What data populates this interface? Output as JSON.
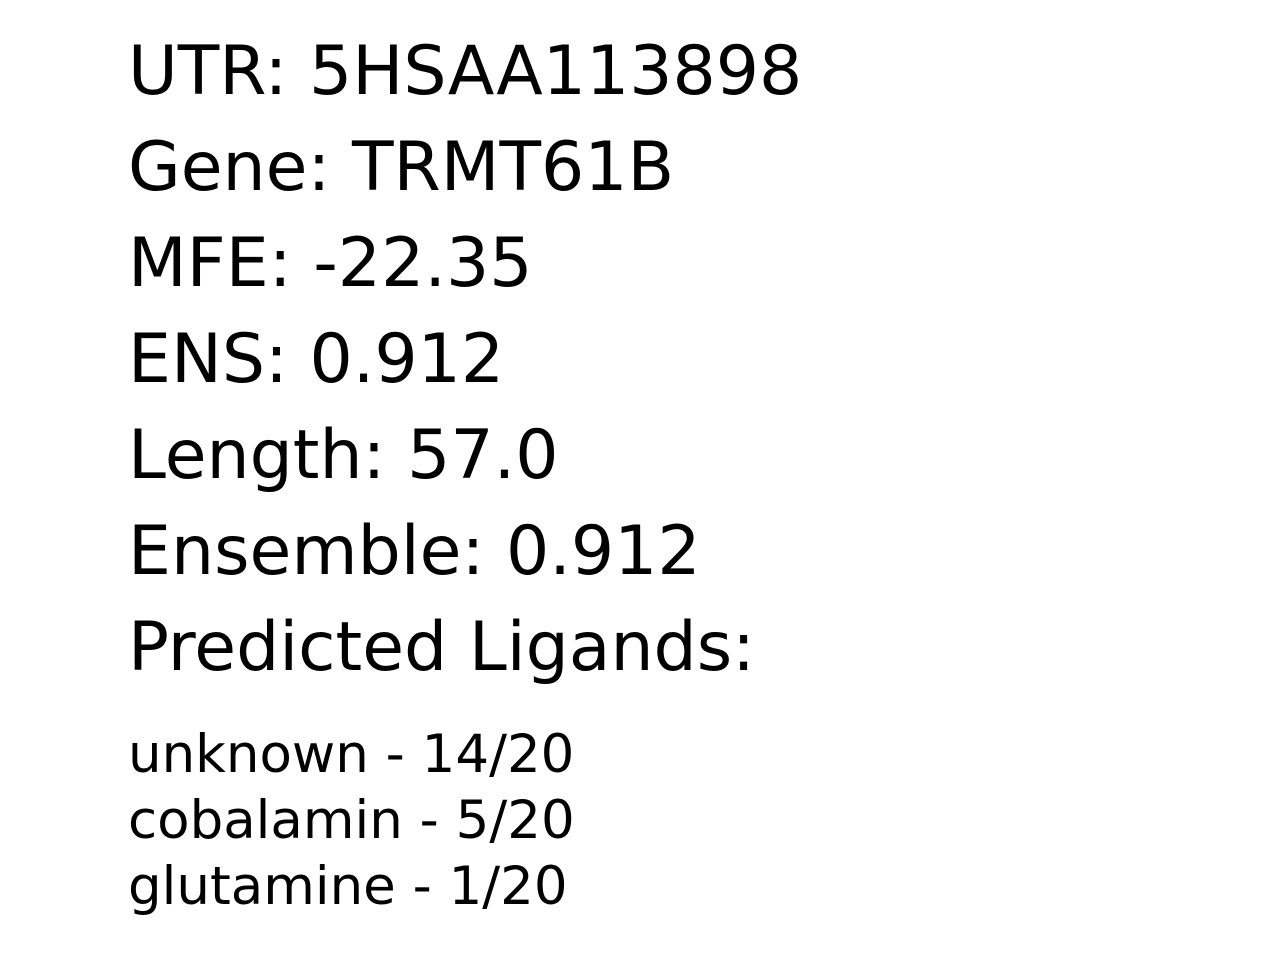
{
  "info": {
    "utr": "UTR: 5HSAA113898",
    "gene": "Gene: TRMT61B",
    "mfe": "MFE: -22.35",
    "ens": "ENS: 0.912",
    "length": "Length: 57.0",
    "ensemble": "Ensemble: 0.912",
    "ligands_heading": "Predicted Ligands:"
  },
  "ligands": [
    "unknown - 14/20",
    "cobalamin - 5/20",
    "glutamine - 1/20"
  ]
}
